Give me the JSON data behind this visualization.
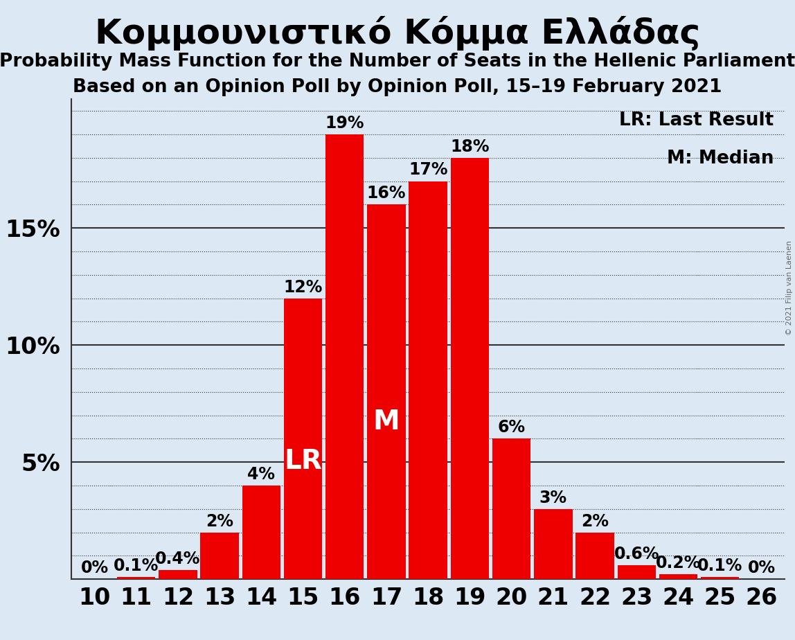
{
  "title": "Κομμουνιστικό Κόμμα Ελλάδας",
  "subtitle1": "Probability Mass Function for the Number of Seats in the Hellenic Parliament",
  "subtitle2": "Based on an Opinion Poll by Opinion Poll, 15–19 February 2021",
  "copyright": "© 2021 Filip van Laenen",
  "categories": [
    10,
    11,
    12,
    13,
    14,
    15,
    16,
    17,
    18,
    19,
    20,
    21,
    22,
    23,
    24,
    25,
    26
  ],
  "values": [
    0.001,
    0.1,
    0.4,
    2.0,
    4.0,
    12.0,
    19.0,
    16.0,
    17.0,
    18.0,
    6.0,
    3.0,
    2.0,
    0.6,
    0.2,
    0.1,
    0.001
  ],
  "bar_color": "#ee0000",
  "background_color": "#dce9f5",
  "label_color": "#000000",
  "ylim": [
    0,
    20.5
  ],
  "yticks": [
    5,
    10,
    15
  ],
  "ytick_labels": [
    "5%",
    "10%",
    "15%"
  ],
  "grid_color": "#555555",
  "solid_lines": [
    5,
    10,
    15
  ],
  "dotted_lines": [
    1,
    2,
    3,
    4,
    6,
    7,
    8,
    9,
    11,
    12,
    13,
    14,
    16,
    17,
    18,
    19,
    20
  ],
  "last_result_bar": 15,
  "median_bar": 17,
  "lr_label": "LR",
  "m_label": "M",
  "legend_lr": "LR: Last Result",
  "legend_m": "M: Median",
  "bar_labels": [
    "0%",
    "0.1%",
    "0.4%",
    "2%",
    "4%",
    "12%",
    "19%",
    "16%",
    "17%",
    "18%",
    "6%",
    "3%",
    "2%",
    "0.6%",
    "0.2%",
    "0.1%",
    "0%"
  ],
  "title_fontsize": 36,
  "subtitle_fontsize": 19,
  "tick_fontsize": 24,
  "bar_label_fontsize": 17,
  "annotation_fontsize": 28,
  "legend_fontsize": 19,
  "copyright_fontsize": 8
}
